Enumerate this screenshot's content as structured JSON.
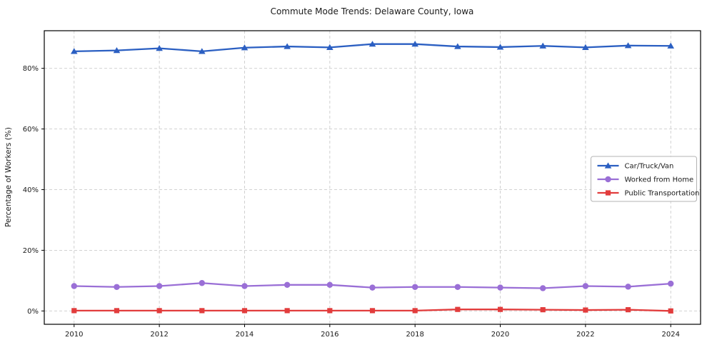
{
  "chart_data": {
    "type": "line",
    "title": "Commute Mode Trends: Delaware County, Iowa",
    "xlabel": "",
    "ylabel": "Percentage of Workers (%)",
    "x": [
      2010,
      2011,
      2012,
      2013,
      2014,
      2015,
      2016,
      2017,
      2018,
      2019,
      2020,
      2021,
      2022,
      2023,
      2024
    ],
    "series": [
      {
        "name": "Car/Truck/Van",
        "color": "#2b5fc2",
        "marker": "triangle",
        "values": [
          85.6,
          85.9,
          86.6,
          85.6,
          86.8,
          87.2,
          86.9,
          88.0,
          88.0,
          87.2,
          87.0,
          87.4,
          86.9,
          87.5,
          87.4
        ]
      },
      {
        "name": "Worked from Home",
        "color": "#9a6fd6",
        "marker": "circle",
        "values": [
          8.2,
          7.9,
          8.2,
          9.2,
          8.2,
          8.6,
          8.6,
          7.7,
          7.9,
          7.9,
          7.7,
          7.5,
          8.2,
          8.0,
          9.0
        ]
      },
      {
        "name": "Public Transportation",
        "color": "#e23c3c",
        "marker": "square",
        "values": [
          0.1,
          0.1,
          0.1,
          0.1,
          0.1,
          0.1,
          0.1,
          0.1,
          0.1,
          0.5,
          0.5,
          0.4,
          0.3,
          0.4,
          0.0
        ]
      }
    ],
    "xticks": [
      2010,
      2012,
      2014,
      2016,
      2018,
      2020,
      2022,
      2024
    ],
    "xtick_labels": [
      "2010",
      "2012",
      "2014",
      "2016",
      "2018",
      "2020",
      "2022",
      "2024"
    ],
    "yticks": [
      0,
      20,
      40,
      60,
      80
    ],
    "ytick_labels": [
      "0%",
      "20%",
      "40%",
      "60%",
      "80%"
    ],
    "xlim": [
      2009.3,
      2024.7
    ],
    "ylim": [
      -4.4,
      92.4
    ],
    "grid": true,
    "grid_color": "#cccccc",
    "frame_color": "#000000",
    "legend_position": "center-right"
  }
}
